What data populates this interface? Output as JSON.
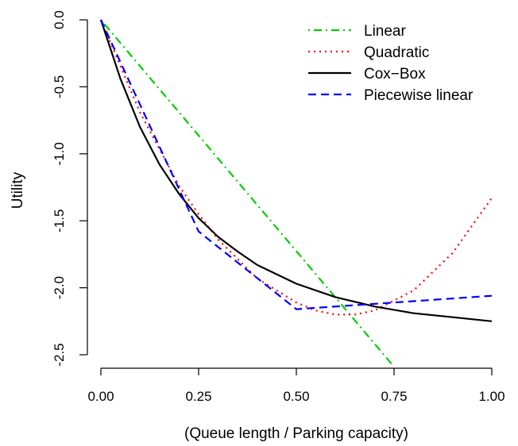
{
  "chart_data": {
    "type": "line",
    "title": "",
    "xlabel": "(Queue length / Parking capacity)",
    "ylabel": "Utility",
    "xlim": [
      0,
      1
    ],
    "ylim": [
      -2.5,
      0
    ],
    "x_ticks": [
      "0.00",
      "0.25",
      "0.50",
      "0.75",
      "1.00"
    ],
    "x_tick_values": [
      0,
      0.25,
      0.5,
      0.75,
      1.0
    ],
    "y_ticks": [
      "0.0",
      "-0.5",
      "-1.0",
      "-1.5",
      "-2.0",
      "-2.5"
    ],
    "y_tick_values": [
      0,
      -0.5,
      -1.0,
      -1.5,
      -2.0,
      -2.5
    ],
    "grid": false,
    "legend_position": "top-right",
    "series": [
      {
        "name": "Linear",
        "color": "#00CD00",
        "line_style": "dot-dash",
        "x": [
          0,
          0.75
        ],
        "y": [
          0,
          -2.59
        ]
      },
      {
        "name": "Quadratic",
        "color": "#FF0000",
        "line_style": "dotted",
        "x": [
          0,
          0.1,
          0.2,
          0.25,
          0.3,
          0.4,
          0.5,
          0.55,
          0.6,
          0.65,
          0.7,
          0.8,
          0.9,
          1.0
        ],
        "y": [
          0,
          -0.69,
          -1.24,
          -1.45,
          -1.64,
          -1.93,
          -2.11,
          -2.17,
          -2.2,
          -2.2,
          -2.17,
          -2.02,
          -1.74,
          -1.33
        ]
      },
      {
        "name": "Cox−Box",
        "color": "#000000",
        "line_style": "solid",
        "x": [
          0,
          0.05,
          0.1,
          0.15,
          0.2,
          0.25,
          0.3,
          0.35,
          0.4,
          0.5,
          0.6,
          0.7,
          0.8,
          0.9,
          1.0
        ],
        "y": [
          0,
          -0.44,
          -0.8,
          -1.08,
          -1.3,
          -1.48,
          -1.62,
          -1.73,
          -1.83,
          -1.97,
          -2.07,
          -2.14,
          -2.19,
          -2.22,
          -2.25
        ]
      },
      {
        "name": "Piecewise linear",
        "color": "#0000FF",
        "line_style": "dashed",
        "x": [
          0,
          0.25,
          0.5,
          0.75,
          1.0
        ],
        "y": [
          0,
          -1.58,
          -2.16,
          -2.11,
          -2.06
        ]
      }
    ]
  }
}
